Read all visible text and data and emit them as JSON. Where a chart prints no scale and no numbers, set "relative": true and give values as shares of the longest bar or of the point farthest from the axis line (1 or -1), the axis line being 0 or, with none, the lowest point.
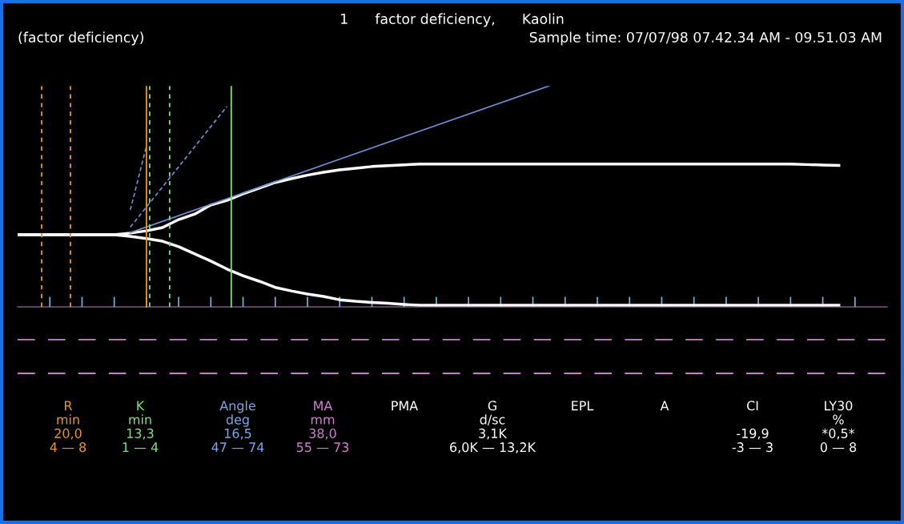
{
  "chart_data": {
    "type": "line",
    "relative": true,
    "title": "1      factor deficiency,      Kaolin",
    "categories": [
      null,
      null,
      null,
      null,
      null,
      null,
      null,
      null,
      null,
      null,
      null,
      null,
      null,
      null,
      null,
      null,
      null,
      null,
      null,
      null,
      null,
      null,
      null,
      null,
      null,
      null,
      null,
      null,
      null,
      null,
      null,
      null,
      null,
      null,
      null,
      null,
      null,
      null,
      null,
      null,
      null,
      null,
      null,
      null,
      null,
      null,
      null,
      null,
      null,
      null,
      null,
      null,
      null
    ],
    "series": [
      {
        "color": "#ffffff",
        "values": [
          0.326,
          0.326,
          0.326,
          0.326,
          0.326,
          0.326,
          0.326,
          0.334,
          0.344,
          0.359,
          0.395,
          0.42,
          0.461,
          0.482,
          0.512,
          0.537,
          0.563,
          0.58,
          0.596,
          0.609,
          0.62,
          0.627,
          0.635,
          0.639,
          0.643,
          0.646,
          0.646,
          0.646,
          0.646,
          0.646,
          0.646,
          0.646,
          0.646,
          0.646,
          0.646,
          0.646,
          0.646,
          0.646,
          0.646,
          0.646,
          0.646,
          0.646,
          0.646,
          0.646,
          0.646,
          0.646,
          0.646,
          0.646,
          0.646,
          0.644,
          0.642,
          0.64,
          null
        ]
      },
      {
        "color": "#ffffff",
        "values": [
          0.326,
          0.326,
          0.326,
          0.326,
          0.326,
          0.326,
          0.326,
          0.319,
          0.309,
          0.297,
          0.272,
          0.24,
          0.207,
          0.171,
          0.141,
          0.116,
          0.088,
          0.072,
          0.058,
          0.047,
          0.032,
          0.025,
          0.02,
          0.016,
          0.011,
          0.007,
          0.007,
          0.007,
          0.007,
          0.007,
          0.007,
          0.007,
          0.007,
          0.007,
          0.007,
          0.007,
          0.007,
          0.007,
          0.007,
          0.007,
          0.007,
          0.007,
          0.007,
          0.007,
          0.007,
          0.007,
          0.007,
          0.007,
          0.007,
          0.007,
          0.007,
          0.007,
          null
        ]
      },
      {
        "color": "#6f8fd8",
        "line_style": "solid",
        "values": [
          null,
          null,
          null,
          null,
          null,
          null,
          null,
          0.336,
          null,
          null,
          null,
          null,
          null,
          null,
          null,
          null,
          null,
          null,
          null,
          null,
          null,
          null,
          null,
          null,
          null,
          null,
          null,
          null,
          null,
          null,
          null,
          null,
          null,
          1.0,
          null,
          null,
          null,
          null,
          null,
          null,
          null,
          null,
          null,
          null,
          null,
          null,
          null,
          null,
          null,
          null,
          null,
          null,
          null
        ]
      },
      {
        "color": "#6f8fd8",
        "line_style": "dashed",
        "values": [
          null,
          null,
          null,
          null,
          null,
          null,
          null,
          0.439,
          0.727,
          null,
          null,
          null,
          null,
          null,
          null,
          null,
          null,
          null,
          null,
          null,
          null,
          null,
          null,
          null,
          null,
          null,
          null,
          null,
          null,
          null,
          null,
          null,
          null,
          null,
          null,
          null,
          null,
          null,
          null,
          null,
          null,
          null,
          null,
          null,
          null,
          null,
          null,
          null,
          null,
          null,
          null,
          null,
          null
        ]
      },
      {
        "color": "#6f8fd8",
        "line_style": "dashed",
        "values": [
          null,
          null,
          null,
          null,
          null,
          null,
          null,
          0.361,
          null,
          null,
          null,
          null,
          null,
          0.907,
          null,
          null,
          null,
          null,
          null,
          null,
          null,
          null,
          null,
          null,
          null,
          null,
          null,
          null,
          null,
          null,
          null,
          null,
          null,
          null,
          null,
          null,
          null,
          null,
          null,
          null,
          null,
          null,
          null,
          null,
          null,
          null,
          null,
          null,
          null,
          null,
          null,
          null,
          null
        ]
      }
    ],
    "ref_lines": [
      {
        "axis": "y",
        "value": -0.148,
        "color": "#c77fc7",
        "line_style": "dashed"
      },
      {
        "axis": "y",
        "value": -0.301,
        "color": "#c77fc7",
        "line_style": "dashed"
      }
    ],
    "annotations": [
      "(factor deficiency)",
      "Sample time: 07/07/98 07.42.34 AM - 09.51.03 AM",
      "R\nmin\n20,0\n4 — 8",
      "K\nmin\n13,3\n1 — 4",
      "Angle\ndeg\n16,5\n47 — 74",
      "MA\nmm\n38,0\n55 — 73",
      "PMA\n\n\n",
      "G\nd/sc\n3,1K\n6,0K — 13,2K",
      "EPL\n\n\n",
      "A\n\n\n",
      "CI\n\n-19,9\n-3 — 3",
      "LY30\n%\n*0,5*\n0 — 8"
    ],
    "grid": false,
    "legend": false,
    "marker": "none",
    "line_style": "solid"
  }
}
